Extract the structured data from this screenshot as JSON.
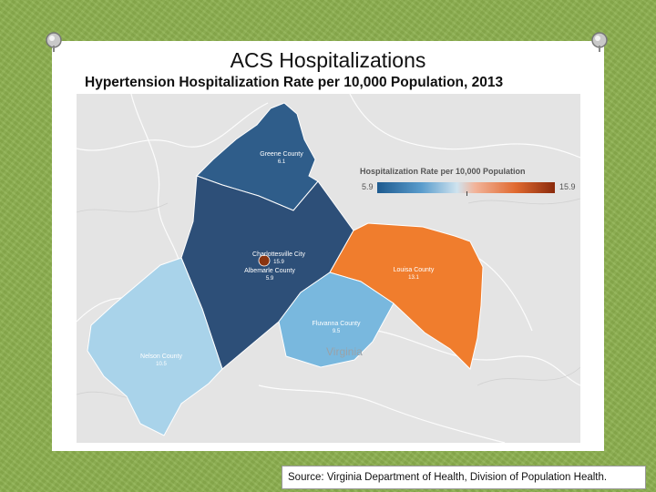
{
  "slide": {
    "title": "ACS Hospitalizations",
    "subtitle": "Hypertension Hospitalization Rate per 10,000 Population, 2013"
  },
  "map": {
    "legend": {
      "title": "Hospitalization Rate per 10,000 Population",
      "min": "5.9",
      "max": "15.9"
    },
    "regions": [
      {
        "name": "Greene County",
        "value": "6.1",
        "color": "#2f5d8a"
      },
      {
        "name": "Charlottesville City",
        "value": "15.9",
        "color": "#8a3410"
      },
      {
        "name": "Albemarle County",
        "value": "5.9",
        "color": "#2d4f78"
      },
      {
        "name": "Louisa County",
        "value": "13.1",
        "color": "#f07d2d"
      },
      {
        "name": "Fluvanna County",
        "value": "9.5",
        "color": "#79b8de"
      },
      {
        "name": "Nelson County",
        "value": "10.5",
        "color": "#a9d3ea"
      }
    ],
    "basemap_label": "Virginia"
  },
  "footer": {
    "source": "Source: Virginia Department of Health, Division of Population Health."
  }
}
